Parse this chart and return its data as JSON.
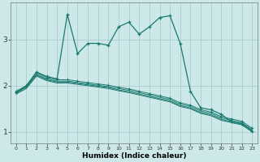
{
  "xlabel": "Humidex (Indice chaleur)",
  "x_ticks": [
    0,
    1,
    2,
    3,
    4,
    5,
    6,
    7,
    8,
    9,
    10,
    11,
    12,
    13,
    14,
    15,
    16,
    17,
    18,
    19,
    20,
    21,
    22,
    23
  ],
  "bg_color": "#cce8e8",
  "grid_color": "#aacccc",
  "line_color": "#1a7a6e",
  "line1": [
    1.85,
    2.0,
    2.3,
    2.2,
    2.15,
    3.55,
    2.7,
    2.92,
    2.92,
    2.88,
    3.28,
    3.38,
    3.12,
    3.28,
    3.48,
    3.52,
    2.92,
    1.88,
    1.52,
    1.48,
    1.38,
    1.22,
    1.18,
    1.02
  ],
  "line2": [
    1.88,
    2.0,
    2.28,
    2.18,
    2.13,
    2.13,
    2.1,
    2.07,
    2.04,
    2.01,
    1.97,
    1.93,
    1.88,
    1.83,
    1.78,
    1.73,
    1.63,
    1.58,
    1.48,
    1.43,
    1.33,
    1.28,
    1.23,
    1.08
  ],
  "line3": [
    1.86,
    1.98,
    2.25,
    2.15,
    2.1,
    2.1,
    2.07,
    2.04,
    2.01,
    1.98,
    1.94,
    1.9,
    1.85,
    1.8,
    1.75,
    1.7,
    1.6,
    1.55,
    1.45,
    1.4,
    1.3,
    1.25,
    1.2,
    1.05
  ],
  "line4": [
    1.84,
    1.96,
    2.23,
    2.13,
    2.08,
    2.08,
    2.05,
    2.02,
    1.99,
    1.96,
    1.91,
    1.87,
    1.82,
    1.77,
    1.72,
    1.67,
    1.57,
    1.52,
    1.42,
    1.37,
    1.27,
    1.22,
    1.17,
    1.02
  ],
  "line5": [
    1.82,
    1.94,
    2.21,
    2.11,
    2.06,
    2.06,
    2.03,
    2.0,
    1.97,
    1.94,
    1.89,
    1.85,
    1.8,
    1.75,
    1.7,
    1.65,
    1.55,
    1.5,
    1.4,
    1.35,
    1.25,
    1.2,
    1.15,
    1.0
  ],
  "ylim": [
    0.75,
    3.8
  ],
  "yticks": [
    1,
    2,
    3
  ],
  "xlim": [
    -0.5,
    23.5
  ],
  "figsize": [
    3.2,
    2.0
  ],
  "dpi": 100
}
